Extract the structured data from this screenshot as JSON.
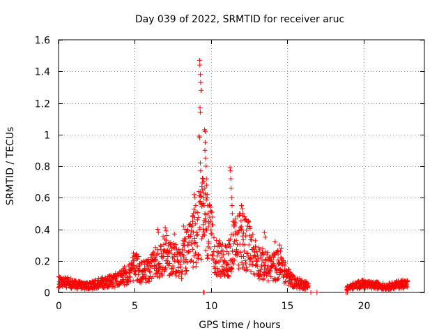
{
  "chart_data": {
    "type": "scatter",
    "title": "Day 039 of 2022, SRMTID for receiver aruc",
    "xlabel": "GPS time / hours",
    "ylabel": "SRMTID / TECUs",
    "xlim": [
      0,
      24
    ],
    "ylim": [
      0,
      1.6
    ],
    "grid": true,
    "marker": "+",
    "marker_color": "#ff0000",
    "xticks": [
      0,
      5,
      10,
      15,
      20
    ],
    "xtick_labels": [
      "0",
      "5",
      "10",
      "15",
      "20"
    ],
    "yticks": [
      0,
      0.2,
      0.4,
      0.6,
      0.8,
      1.0,
      1.2,
      1.4,
      1.6
    ],
    "ytick_labels": [
      "0",
      "0.2",
      "0.4",
      "0.6",
      "0.8",
      "1",
      "1.2",
      "1.4",
      "1.6"
    ],
    "series": [
      {
        "name": "SRMTID",
        "profile": [
          [
            0.0,
            0.06
          ],
          [
            0.5,
            0.06
          ],
          [
            1.0,
            0.05
          ],
          [
            1.5,
            0.04
          ],
          [
            2.0,
            0.04
          ],
          [
            2.5,
            0.05
          ],
          [
            3.0,
            0.06
          ],
          [
            3.5,
            0.07
          ],
          [
            4.0,
            0.08
          ],
          [
            4.5,
            0.11
          ],
          [
            5.0,
            0.16
          ],
          [
            5.5,
            0.12
          ],
          [
            6.0,
            0.13
          ],
          [
            6.5,
            0.2
          ],
          [
            7.0,
            0.22
          ],
          [
            7.5,
            0.19
          ],
          [
            8.0,
            0.18
          ],
          [
            8.5,
            0.25
          ],
          [
            9.0,
            0.35
          ],
          [
            9.5,
            0.45
          ],
          [
            10.0,
            0.32
          ],
          [
            10.5,
            0.2
          ],
          [
            11.0,
            0.18
          ],
          [
            11.5,
            0.28
          ],
          [
            12.0,
            0.33
          ],
          [
            12.5,
            0.27
          ],
          [
            13.0,
            0.2
          ],
          [
            13.5,
            0.16
          ],
          [
            14.0,
            0.15
          ],
          [
            14.5,
            0.17
          ],
          [
            15.0,
            0.1
          ],
          [
            15.5,
            0.06
          ],
          [
            16.0,
            0.05
          ],
          [
            16.4,
            0.04
          ]
        ],
        "profile2": [
          [
            18.9,
            0.03
          ],
          [
            19.2,
            0.04
          ],
          [
            19.5,
            0.05
          ],
          [
            20.0,
            0.06
          ],
          [
            20.5,
            0.05
          ],
          [
            21.0,
            0.05
          ],
          [
            21.5,
            0.04
          ],
          [
            22.0,
            0.05
          ],
          [
            22.5,
            0.06
          ],
          [
            22.9,
            0.06
          ]
        ],
        "spikes": [
          [
            9.25,
            1.47
          ],
          [
            9.27,
            1.44
          ],
          [
            9.3,
            1.38
          ],
          [
            9.32,
            1.33
          ],
          [
            9.35,
            1.28
          ],
          [
            9.28,
            1.17
          ],
          [
            9.3,
            1.14
          ],
          [
            9.22,
            0.99
          ],
          [
            9.25,
            0.98
          ],
          [
            9.3,
            0.82
          ],
          [
            9.32,
            0.77
          ],
          [
            9.4,
            0.67
          ],
          [
            9.45,
            0.65
          ],
          [
            9.5,
            0.6
          ],
          [
            9.55,
            0.55
          ],
          [
            9.6,
            0.5
          ],
          [
            9.48,
            0.72
          ],
          [
            9.52,
            0.7
          ],
          [
            9.6,
            0.9
          ],
          [
            9.62,
            0.95
          ],
          [
            9.65,
            0.85
          ],
          [
            9.68,
            0.8
          ],
          [
            9.58,
            1.03
          ],
          [
            9.62,
            1.02
          ],
          [
            9.7,
            0.72
          ],
          [
            9.72,
            0.68
          ],
          [
            9.75,
            0.62
          ],
          [
            9.78,
            0.55
          ],
          [
            9.8,
            0.5
          ],
          [
            9.85,
            0.45
          ],
          [
            8.9,
            0.62
          ],
          [
            8.95,
            0.6
          ],
          [
            9.0,
            0.55
          ],
          [
            8.85,
            0.5
          ],
          [
            8.8,
            0.45
          ],
          [
            11.25,
            0.79
          ],
          [
            11.28,
            0.77
          ],
          [
            11.3,
            0.72
          ],
          [
            11.32,
            0.66
          ],
          [
            11.35,
            0.6
          ],
          [
            11.38,
            0.55
          ],
          [
            11.4,
            0.5
          ],
          [
            11.45,
            0.45
          ],
          [
            11.5,
            0.42
          ],
          [
            12.0,
            0.55
          ],
          [
            12.05,
            0.53
          ],
          [
            12.1,
            0.5
          ],
          [
            12.2,
            0.48
          ],
          [
            12.3,
            0.46
          ],
          [
            6.5,
            0.4
          ],
          [
            6.55,
            0.38
          ],
          [
            7.0,
            0.41
          ],
          [
            7.05,
            0.39
          ],
          [
            7.1,
            0.36
          ],
          [
            7.6,
            0.37
          ],
          [
            8.2,
            0.42
          ],
          [
            8.3,
            0.4
          ],
          [
            8.4,
            0.38
          ],
          [
            13.5,
            0.38
          ],
          [
            13.55,
            0.35
          ],
          [
            14.2,
            0.32
          ],
          [
            14.5,
            0.3
          ],
          [
            14.6,
            0.28
          ]
        ],
        "zeros": [
          9.5,
          9.55,
          16.55,
          16.95,
          18.85,
          18.95
        ]
      }
    ]
  }
}
